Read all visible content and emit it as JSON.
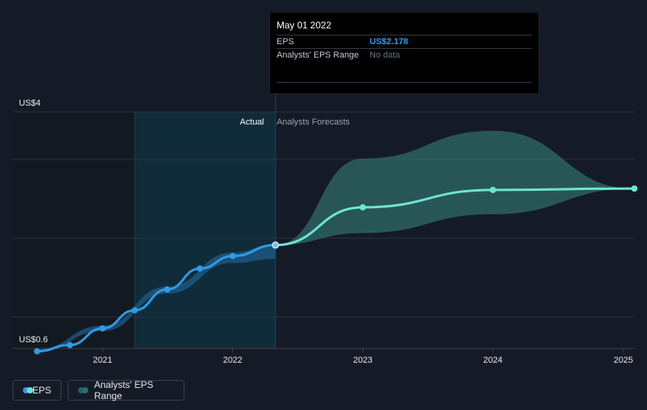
{
  "tooltip": {
    "date": "May 01 2022",
    "eps_label": "EPS",
    "eps_value": "US$2.178",
    "range_label": "Analysts' EPS Range",
    "range_value": "No data"
  },
  "regions": {
    "actual": "Actual",
    "forecast": "Analysts Forecasts"
  },
  "legend": {
    "eps": "EPS",
    "range": "Analysts' EPS Range"
  },
  "colors": {
    "background": "#151b26",
    "eps_actual": "#2f9be6",
    "eps_forecast": "#6ee6cf",
    "range_fill": "#2f6b68",
    "past_highlight": "#0f3341"
  },
  "chart_data": {
    "type": "line",
    "y_tick_labels": [
      "US$4",
      "US$0.6"
    ],
    "ylim": [
      0.6,
      4.0
    ],
    "xlim": [
      "2020-06-15",
      "2025-02-01"
    ],
    "x_tick_labels": [
      "2021",
      "2022",
      "2023",
      "2024",
      "2025"
    ],
    "x_tick_dates": [
      "2021-01-01",
      "2022-01-01",
      "2023-01-01",
      "2024-01-01",
      "2025-01-01"
    ],
    "forecast_start": "2022-05-01",
    "highlight_start": "2021-04-01",
    "series": [
      {
        "name": "EPS",
        "segment": "actual",
        "points": [
          {
            "x": "2020-07-01",
            "y": 0.65
          },
          {
            "x": "2020-10-01",
            "y": 0.74
          },
          {
            "x": "2021-01-01",
            "y": 0.98
          },
          {
            "x": "2021-04-01",
            "y": 1.24
          },
          {
            "x": "2021-07-01",
            "y": 1.54
          },
          {
            "x": "2021-10-01",
            "y": 1.84
          },
          {
            "x": "2022-01-01",
            "y": 2.02
          },
          {
            "x": "2022-05-01",
            "y": 2.178
          }
        ]
      },
      {
        "name": "EPS",
        "segment": "forecast",
        "points": [
          {
            "x": "2022-05-01",
            "y": 2.178
          },
          {
            "x": "2023-01-01",
            "y": 2.72
          },
          {
            "x": "2024-01-01",
            "y": 2.97
          },
          {
            "x": "2025-02-01",
            "y": 2.99
          }
        ]
      }
    ],
    "range": {
      "name": "Analysts' EPS Range",
      "past": {
        "x": [
          "2020-07-01",
          "2021-01-01",
          "2021-07-01",
          "2022-01-01",
          "2022-05-01"
        ],
        "low": [
          0.64,
          0.94,
          1.48,
          1.92,
          1.98
        ],
        "high": [
          0.68,
          1.02,
          1.58,
          2.07,
          2.19
        ]
      },
      "forecast": {
        "x": [
          "2022-05-01",
          "2023-01-01",
          "2024-01-01",
          "2025-02-01"
        ],
        "low": [
          2.178,
          2.35,
          2.62,
          2.99
        ],
        "high": [
          2.178,
          3.42,
          3.82,
          2.99
        ]
      }
    }
  }
}
